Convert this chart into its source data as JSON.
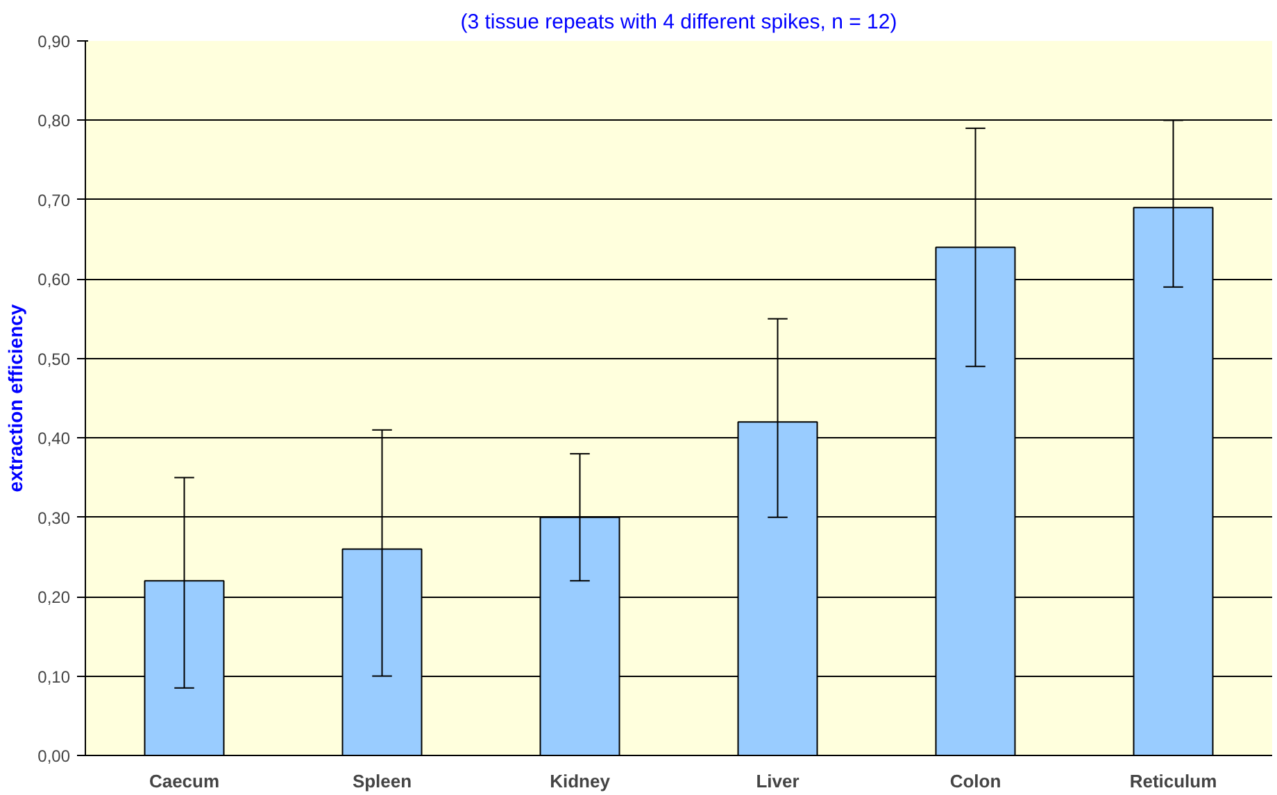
{
  "chart_data": {
    "type": "bar",
    "subtitle": "(3 tissue repeats with 4 different spikes, n = 12)",
    "ylabel": "extraction efficiency",
    "categories": [
      "Caecum",
      "Spleen",
      "Kidney",
      "Liver",
      "Colon",
      "Reticulum"
    ],
    "values": [
      0.22,
      0.26,
      0.3,
      0.42,
      0.64,
      0.69
    ],
    "errors": [
      [
        0.085,
        0.35
      ],
      [
        0.1,
        0.41
      ],
      [
        0.22,
        0.38
      ],
      [
        0.3,
        0.55
      ],
      [
        0.49,
        0.79
      ],
      [
        0.59,
        0.8
      ]
    ],
    "color": "#99ccff",
    "ylim": [
      0,
      0.9
    ],
    "yticks": [
      {
        "value": 0,
        "label": "0,00"
      },
      {
        "value": 0.1,
        "label": "0,10"
      },
      {
        "value": 0.2,
        "label": "0,20"
      },
      {
        "value": 0.3,
        "label": "0,30"
      },
      {
        "value": 0.4,
        "label": "0,40"
      },
      {
        "value": 0.5,
        "label": "0,50"
      },
      {
        "value": 0.6,
        "label": "0,60"
      },
      {
        "value": 0.7,
        "label": "0,70"
      },
      {
        "value": 0.8,
        "label": "0,80"
      },
      {
        "value": 0.9,
        "label": "0,90"
      }
    ],
    "grid": "y"
  }
}
